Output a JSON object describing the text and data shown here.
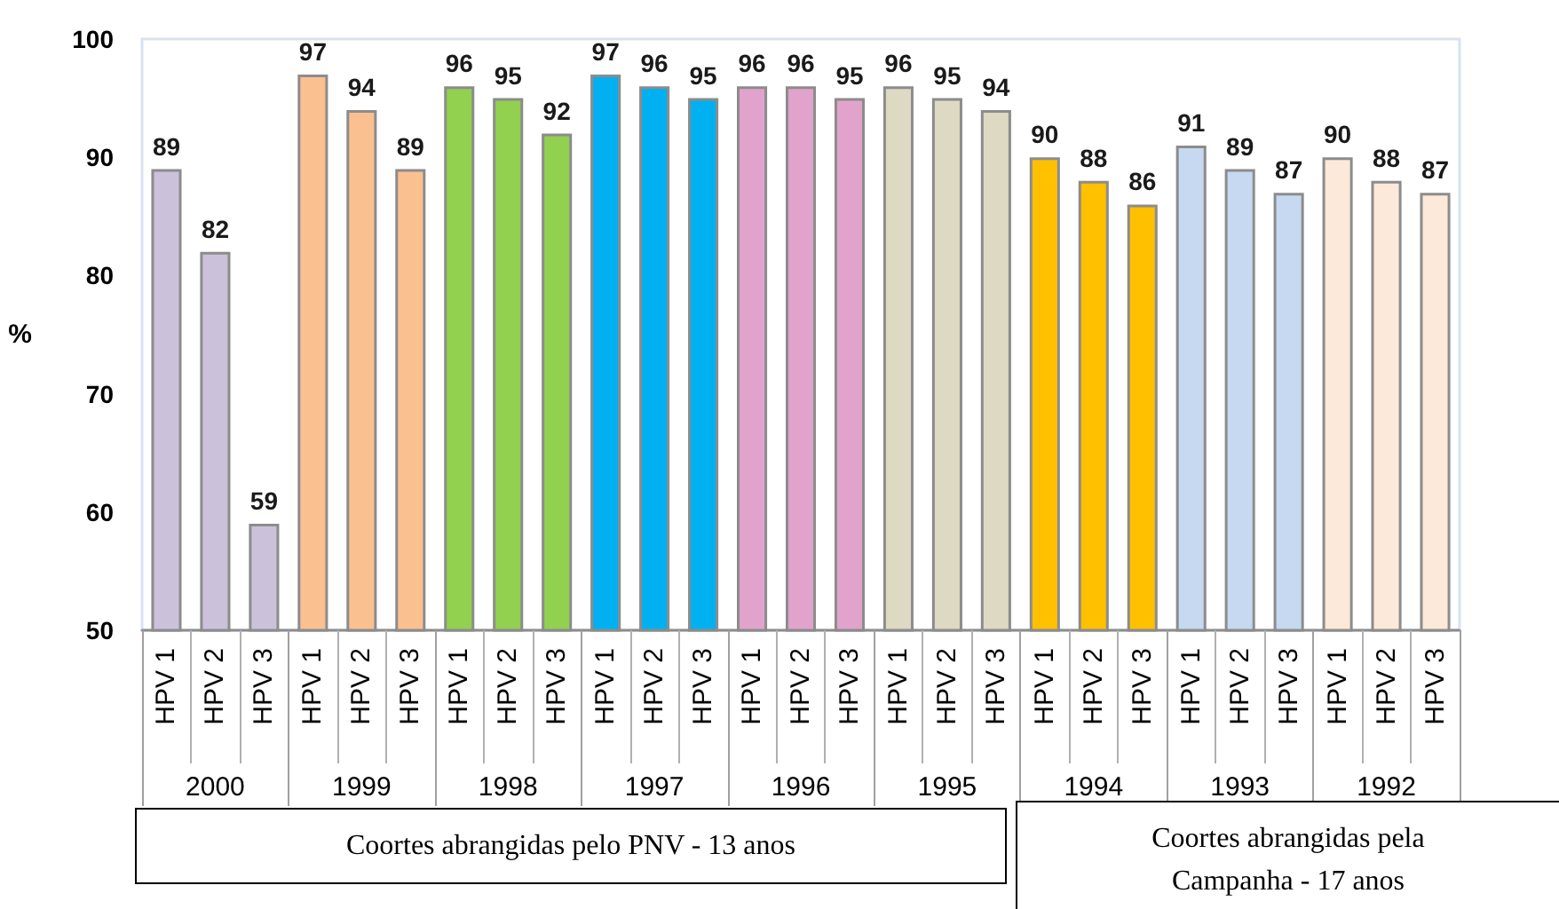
{
  "chart_data": {
    "type": "bar",
    "ylabel": "%",
    "categories": [
      "HPV 1",
      "HPV 2",
      "HPV 3",
      "HPV 1",
      "HPV 2",
      "HPV 3",
      "HPV 1",
      "HPV 2",
      "HPV 3",
      "HPV 1",
      "HPV 2",
      "HPV 3",
      "HPV 1",
      "HPV 2",
      "HPV 3",
      "HPV 1",
      "HPV 2",
      "HPV 3",
      "HPV 1",
      "HPV 2",
      "HPV 3",
      "HPV 1",
      "HPV 2",
      "HPV 3",
      "HPV 1",
      "HPV 2",
      "HPV 3"
    ],
    "values": [
      89,
      82,
      59,
      97,
      94,
      89,
      96,
      95,
      92,
      97,
      96,
      95,
      96,
      96,
      95,
      96,
      95,
      94,
      90,
      88,
      86,
      91,
      89,
      87,
      90,
      88,
      87
    ],
    "colors": [
      "#ccc1da",
      "#ccc1da",
      "#ccc1da",
      "#fac090",
      "#fac090",
      "#fac090",
      "#92d050",
      "#92d050",
      "#92d050",
      "#00b0f0",
      "#00b0f0",
      "#00b0f0",
      "#e1a3cc",
      "#e1a3cc",
      "#e1a3cc",
      "#ddd9c3",
      "#ddd9c3",
      "#ddd9c3",
      "#ffc000",
      "#ffc000",
      "#ffc000",
      "#c6d9f1",
      "#c6d9f1",
      "#c6d9f1",
      "#fde9d9",
      "#fde9d9",
      "#fde9d9"
    ],
    "ylim": [
      50,
      100
    ],
    "yticks": [
      50,
      60,
      70,
      80,
      90,
      100
    ],
    "data_labels": true,
    "annotations": [
      "2000",
      "1999",
      "1998",
      "1997",
      "1996",
      "1995",
      "1994",
      "1993",
      "1992",
      "Coortes abrangidas pelo PNV - 13 anos",
      "Coortes abrangidas pela Campanha - 17 anos"
    ]
  }
}
